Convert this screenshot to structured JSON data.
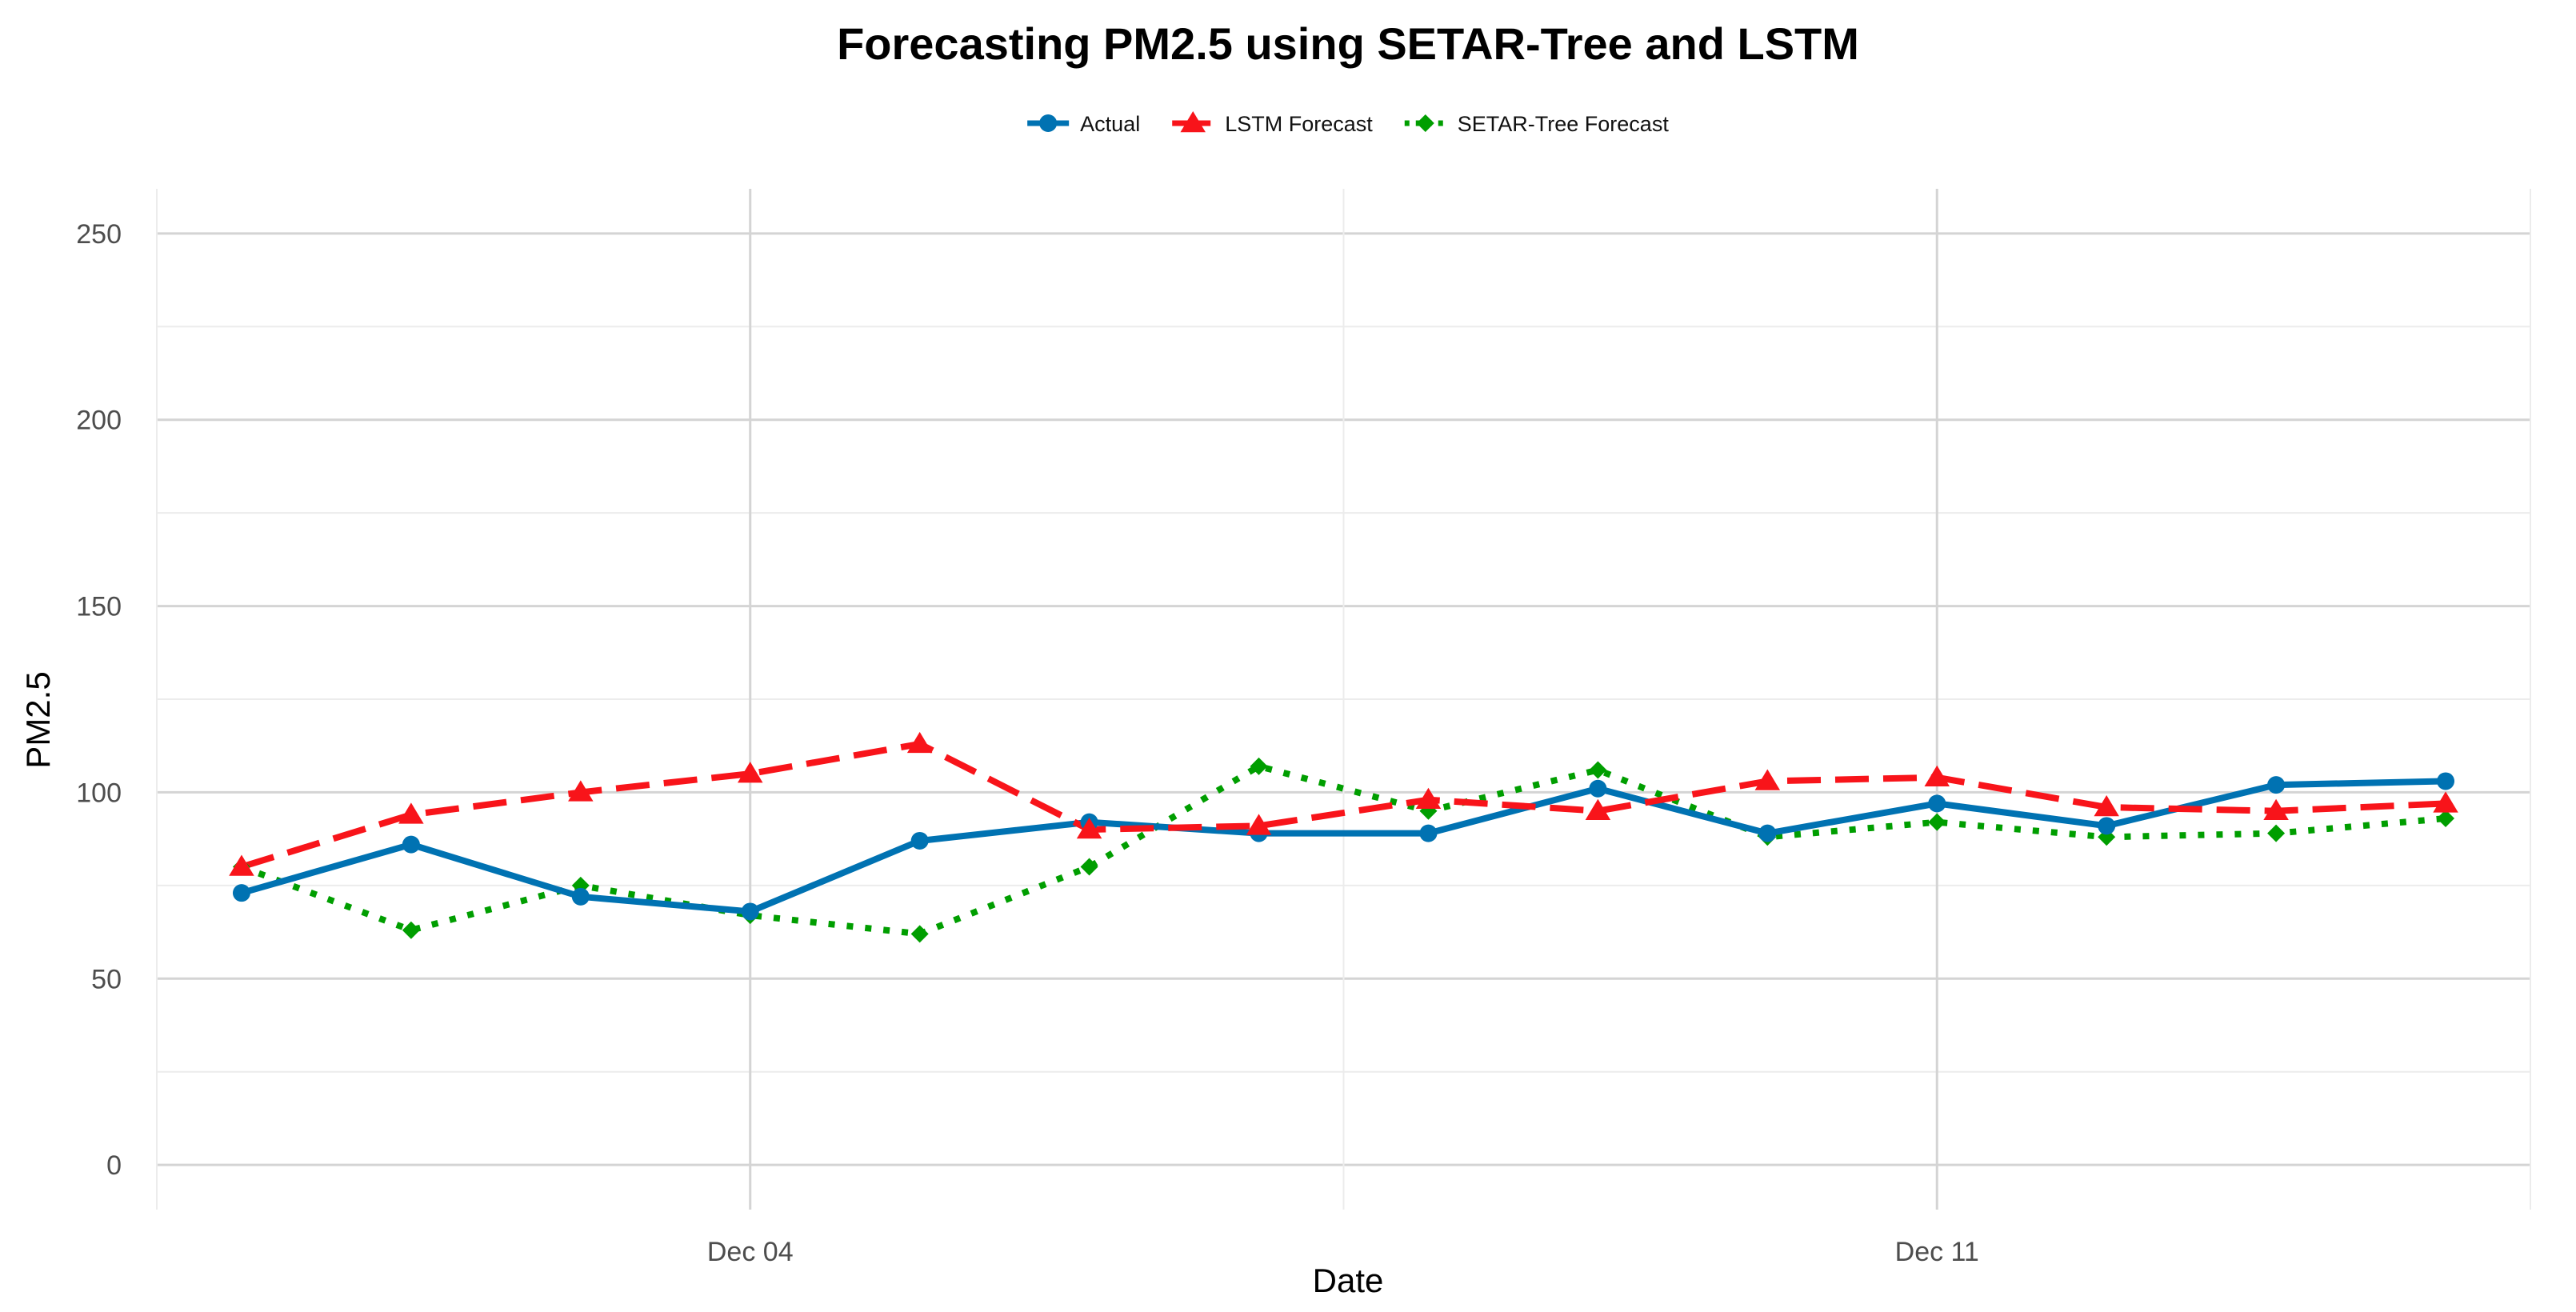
{
  "chart_data": {
    "type": "line",
    "title": "Forecasting PM2.5 using SETAR-Tree and LSTM",
    "xlabel": "Date",
    "ylabel": "PM2.5",
    "x_tick_labels": [
      {
        "index": 3,
        "label": "Dec 04"
      },
      {
        "index": 10,
        "label": "Dec 11"
      }
    ],
    "x_dates": [
      "Dec 01",
      "Dec 02",
      "Dec 03",
      "Dec 04",
      "Dec 05",
      "Dec 06",
      "Dec 07",
      "Dec 08",
      "Dec 09",
      "Dec 10",
      "Dec 11",
      "Dec 12",
      "Dec 13",
      "Dec 14"
    ],
    "xlim": [
      -0.5,
      13.5
    ],
    "ylim": [
      -12,
      262
    ],
    "y_ticks": [
      0,
      50,
      100,
      150,
      200,
      250
    ],
    "y_tick_labels": [
      "0",
      "50",
      "100",
      "150",
      "200",
      "250"
    ],
    "grid": true,
    "legend_position": "top",
    "series": [
      {
        "name": "Actual",
        "color": "#0072B2",
        "marker": "circle",
        "linestyle": "solid",
        "values": [
          73,
          86,
          72,
          68,
          87,
          92,
          89,
          89,
          101,
          89,
          97,
          91,
          102,
          103
        ]
      },
      {
        "name": "LSTM Forecast",
        "color": "#F8141A",
        "marker": "triangle",
        "linestyle": "dashed",
        "values": [
          80,
          94,
          100,
          105,
          113,
          90,
          91,
          98,
          95,
          103,
          104,
          96,
          95,
          97
        ]
      },
      {
        "name": "SETAR-Tree Forecast",
        "color": "#009E00",
        "marker": "diamond",
        "linestyle": "dotted",
        "values": [
          80,
          63,
          75,
          67,
          62,
          80,
          107,
          95,
          106,
          88,
          92,
          88,
          89,
          93
        ]
      }
    ]
  }
}
